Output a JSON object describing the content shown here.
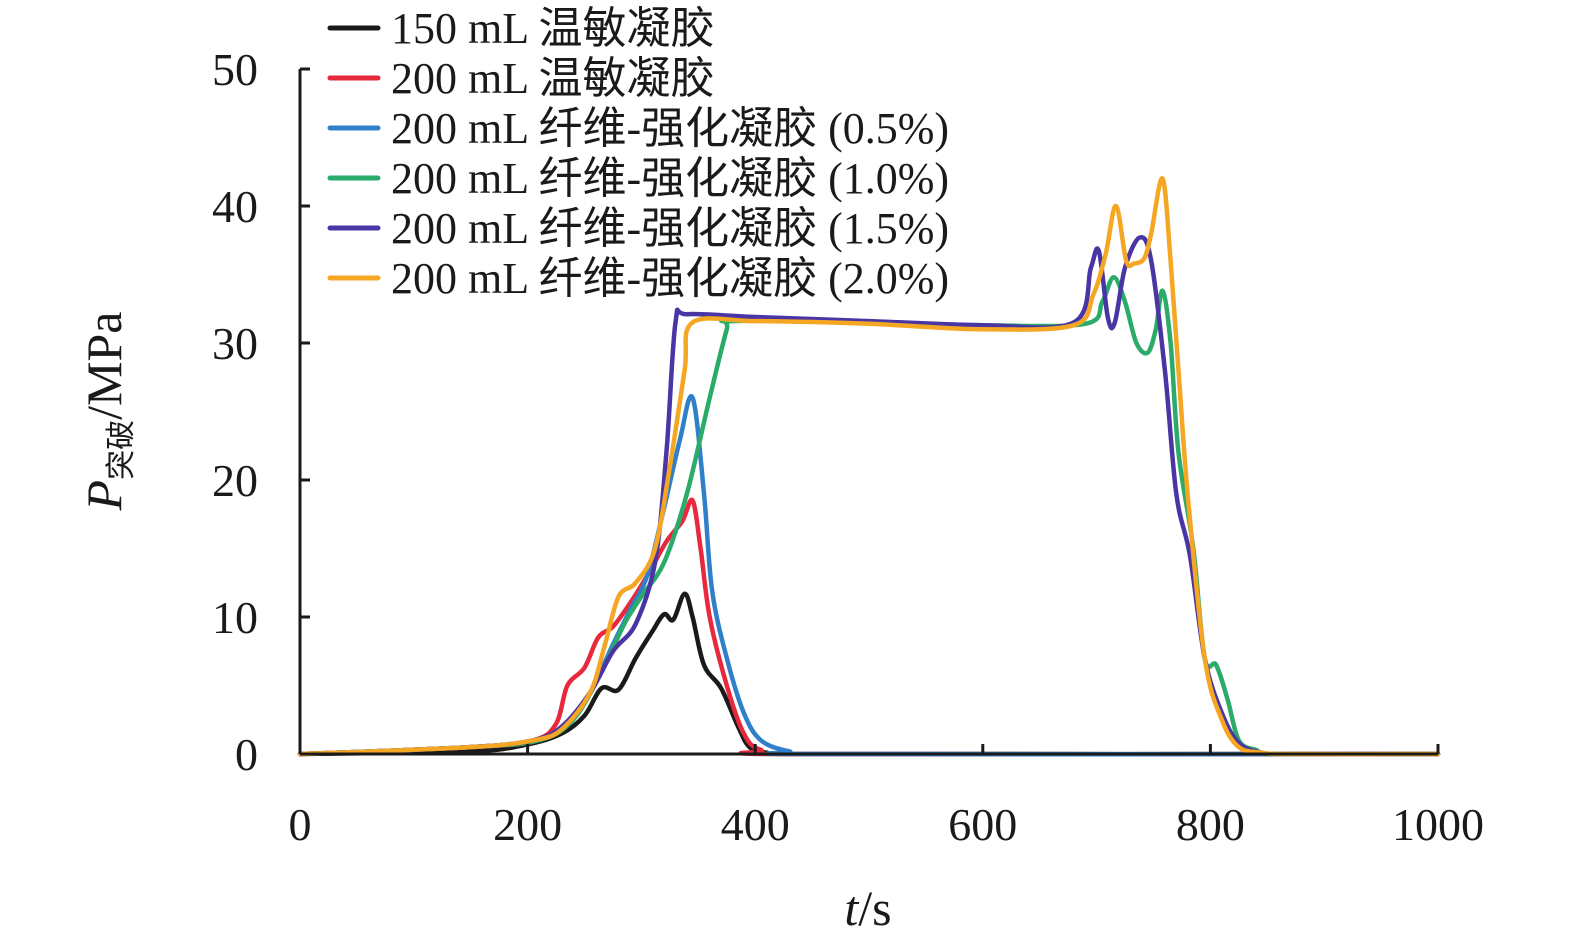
{
  "chart_data": {
    "type": "line",
    "xlabel_var": "t",
    "xlabel_unit": "/s",
    "ylabel_var": "P",
    "ylabel_sub": "突破",
    "ylabel_unit": "/MPa",
    "xlim": [
      0,
      1000
    ],
    "ylim": [
      0,
      50
    ],
    "xticks": [
      0,
      200,
      400,
      600,
      800,
      1000
    ],
    "yticks": [
      0,
      10,
      20,
      30,
      40,
      50
    ],
    "xtick_labels": [
      "0",
      "200",
      "400",
      "600",
      "800",
      "1000"
    ],
    "ytick_labels": [
      "0",
      "10",
      "20",
      "30",
      "40",
      "50"
    ],
    "grid": false,
    "legend_position": "top-left",
    "series": [
      {
        "name": "150 mL 温敏凝胶",
        "color": "#1a1a1a",
        "points": [
          [
            0,
            0
          ],
          [
            150,
            0.2
          ],
          [
            200,
            0.7
          ],
          [
            230,
            1.5
          ],
          [
            250,
            2.8
          ],
          [
            265,
            4.8
          ],
          [
            280,
            4.7
          ],
          [
            295,
            7
          ],
          [
            310,
            9
          ],
          [
            320,
            10.2
          ],
          [
            328,
            9.8
          ],
          [
            338,
            11.7
          ],
          [
            345,
            10
          ],
          [
            355,
            6.5
          ],
          [
            370,
            4.8
          ],
          [
            385,
            2
          ],
          [
            395,
            0.5
          ],
          [
            410,
            0.1
          ],
          [
            450,
            0
          ],
          [
            1000,
            0
          ]
        ]
      },
      {
        "name": "200 mL 温敏凝胶",
        "color": "#e8283c",
        "points": [
          [
            0,
            0
          ],
          [
            150,
            0.5
          ],
          [
            205,
            1
          ],
          [
            225,
            2.2
          ],
          [
            235,
            5
          ],
          [
            250,
            6.3
          ],
          [
            262,
            8.5
          ],
          [
            275,
            9.3
          ],
          [
            290,
            11
          ],
          [
            305,
            13
          ],
          [
            322,
            15.5
          ],
          [
            336,
            17
          ],
          [
            345,
            18.5
          ],
          [
            352,
            15
          ],
          [
            360,
            10
          ],
          [
            375,
            5
          ],
          [
            390,
            1.5
          ],
          [
            405,
            0.3
          ],
          [
            440,
            0
          ],
          [
            1000,
            0
          ]
        ]
      },
      {
        "name": "200 mL 纤维-强化凝胶 (0.5%)",
        "color": "#2f80c9",
        "points": [
          [
            0,
            0
          ],
          [
            150,
            0.5
          ],
          [
            205,
            1
          ],
          [
            230,
            1.8
          ],
          [
            255,
            4.5
          ],
          [
            275,
            8
          ],
          [
            290,
            10.5
          ],
          [
            305,
            13
          ],
          [
            320,
            18
          ],
          [
            334,
            23
          ],
          [
            345,
            26
          ],
          [
            355,
            19
          ],
          [
            362,
            12
          ],
          [
            375,
            7
          ],
          [
            390,
            3
          ],
          [
            405,
            1
          ],
          [
            430,
            0.2
          ],
          [
            460,
            0
          ],
          [
            1000,
            0
          ]
        ]
      },
      {
        "name": "200 mL 纤维-强化凝胶 (1.0%)",
        "color": "#2aab6a",
        "points": [
          [
            0,
            0
          ],
          [
            150,
            0.5
          ],
          [
            210,
            1
          ],
          [
            240,
            2.5
          ],
          [
            265,
            6
          ],
          [
            285,
            9.5
          ],
          [
            300,
            11.5
          ],
          [
            320,
            14
          ],
          [
            340,
            19
          ],
          [
            360,
            26
          ],
          [
            375,
            31
          ],
          [
            380,
            31.6
          ],
          [
            500,
            31.5
          ],
          [
            600,
            31.3
          ],
          [
            690,
            31.4
          ],
          [
            705,
            33
          ],
          [
            715,
            34.8
          ],
          [
            725,
            33
          ],
          [
            735,
            30
          ],
          [
            745,
            29.3
          ],
          [
            752,
            31
          ],
          [
            758,
            33.8
          ],
          [
            765,
            30
          ],
          [
            772,
            22
          ],
          [
            785,
            15
          ],
          [
            795,
            7
          ],
          [
            805,
            6.5
          ],
          [
            815,
            4
          ],
          [
            825,
            1
          ],
          [
            840,
            0.3
          ],
          [
            860,
            0
          ],
          [
            1000,
            0
          ]
        ]
      },
      {
        "name": "200 mL 纤维-强化凝胶 (1.5%)",
        "color": "#4a35a5",
        "points": [
          [
            0,
            0
          ],
          [
            150,
            0.5
          ],
          [
            205,
            1
          ],
          [
            230,
            2
          ],
          [
            255,
            4.5
          ],
          [
            275,
            7.5
          ],
          [
            295,
            9.5
          ],
          [
            312,
            14
          ],
          [
            322,
            22
          ],
          [
            330,
            31.5
          ],
          [
            340,
            32.1
          ],
          [
            400,
            31.9
          ],
          [
            500,
            31.6
          ],
          [
            600,
            31.3
          ],
          [
            680,
            31.5
          ],
          [
            695,
            35.5
          ],
          [
            702,
            36.7
          ],
          [
            710,
            31.8
          ],
          [
            716,
            31.5
          ],
          [
            725,
            35.5
          ],
          [
            738,
            37.7
          ],
          [
            748,
            36
          ],
          [
            760,
            28
          ],
          [
            770,
            19
          ],
          [
            782,
            14.5
          ],
          [
            795,
            7
          ],
          [
            810,
            3
          ],
          [
            825,
            0.8
          ],
          [
            845,
            0.1
          ],
          [
            870,
            0
          ],
          [
            1000,
            0
          ]
        ]
      },
      {
        "name": "200 mL 纤维-强化凝胶 (2.0%)",
        "color": "#f5a623",
        "points": [
          [
            0,
            0
          ],
          [
            150,
            0.5
          ],
          [
            205,
            1
          ],
          [
            230,
            1.8
          ],
          [
            255,
            4.5
          ],
          [
            268,
            8
          ],
          [
            280,
            11.5
          ],
          [
            295,
            12.5
          ],
          [
            312,
            15
          ],
          [
            325,
            21
          ],
          [
            338,
            28
          ],
          [
            345,
            31.5
          ],
          [
            400,
            31.6
          ],
          [
            500,
            31.4
          ],
          [
            600,
            31
          ],
          [
            680,
            31.3
          ],
          [
            697,
            33.5
          ],
          [
            708,
            36.5
          ],
          [
            717,
            40
          ],
          [
            726,
            36
          ],
          [
            733,
            35.8
          ],
          [
            742,
            36.2
          ],
          [
            748,
            38
          ],
          [
            758,
            42
          ],
          [
            765,
            36
          ],
          [
            772,
            28
          ],
          [
            780,
            19
          ],
          [
            795,
            7
          ],
          [
            810,
            2.5
          ],
          [
            825,
            0.5
          ],
          [
            845,
            0.1
          ],
          [
            870,
            0
          ],
          [
            1000,
            0
          ]
        ]
      }
    ]
  }
}
